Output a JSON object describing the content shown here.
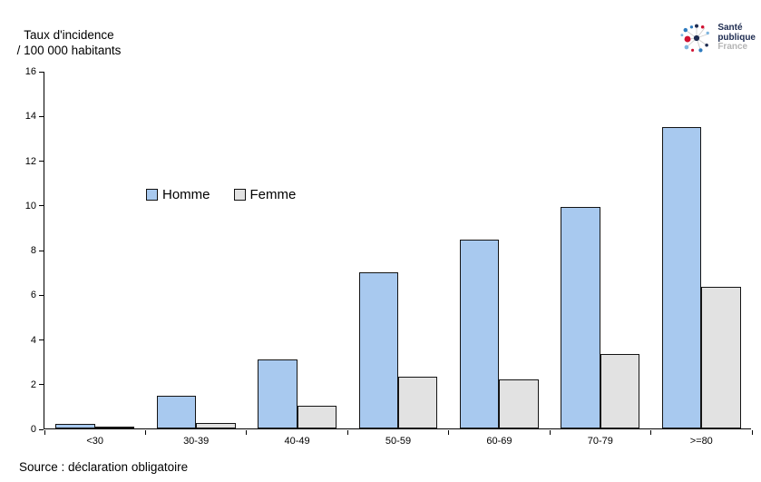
{
  "header": {
    "title_line1": "Taux d'incidence",
    "title_line2": "/ 100 000 habitants"
  },
  "logo": {
    "icon": "dot-burst-icon",
    "line1": "Santé",
    "line2": "publique",
    "line3": "France",
    "navy": "#1d2b50",
    "red": "#d11030",
    "blue": "#2e7bbf",
    "light_blue": "#7fb5de"
  },
  "chart_data": {
    "type": "bar",
    "title": "Taux d'incidence / 100 000 habitants",
    "ylabel": "Taux d'incidence / 100 000 habitants",
    "xlabel": "",
    "categories": [
      "<30",
      "30-39",
      "40-49",
      "50-59",
      "60-69",
      "70-79",
      ">=80"
    ],
    "series": [
      {
        "name": "Homme",
        "color": "#a8c9ef",
        "values": [
          0.2,
          1.45,
          3.1,
          7.0,
          8.45,
          9.9,
          13.5
        ]
      },
      {
        "name": "Femme",
        "color": "#e2e2e2",
        "values": [
          0.05,
          0.25,
          1.0,
          2.3,
          2.2,
          3.35,
          6.35
        ]
      }
    ],
    "ylim": [
      0,
      16
    ],
    "yticks": [
      0,
      2,
      4,
      6,
      8,
      10,
      12,
      14,
      16
    ],
    "grid": false,
    "legend_position": "inside-upper-left",
    "bar_border_color": "#141414"
  },
  "footer": {
    "source": "Source : déclaration obligatoire"
  }
}
